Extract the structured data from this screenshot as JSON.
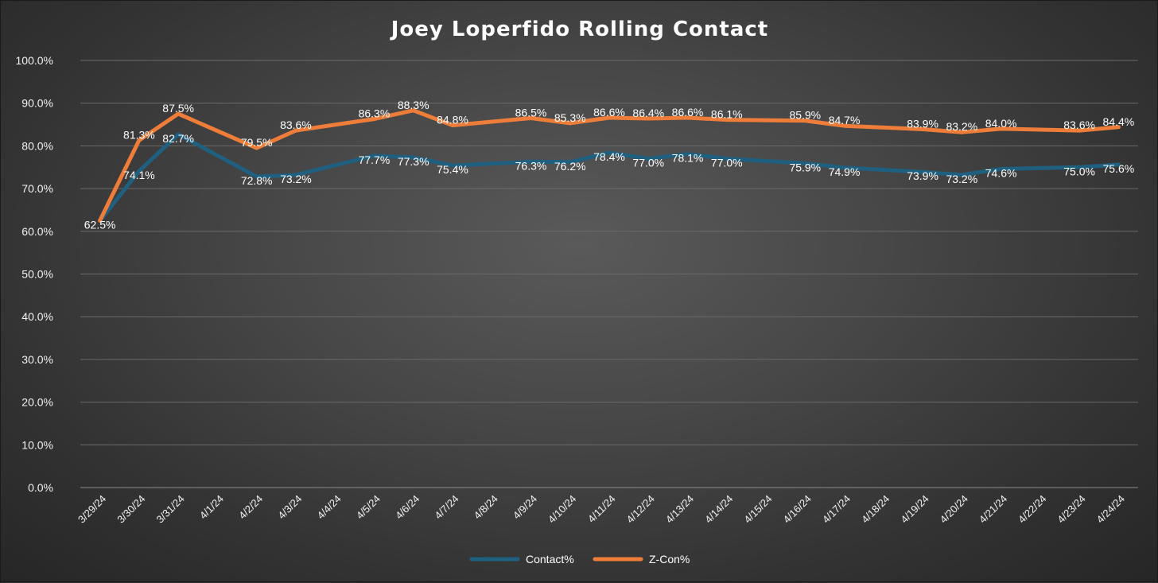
{
  "chart_data": {
    "type": "line",
    "title": "Joey Loperfido Rolling Contact",
    "xlabel": "",
    "ylabel": "",
    "ylim": [
      0,
      100
    ],
    "y_ticks": [
      "0.0%",
      "10.0%",
      "20.0%",
      "30.0%",
      "40.0%",
      "50.0%",
      "60.0%",
      "70.0%",
      "80.0%",
      "90.0%",
      "100.0%"
    ],
    "categories": [
      "3/29/24",
      "3/30/24",
      "3/31/24",
      "4/1/24",
      "4/2/24",
      "4/3/24",
      "4/4/24",
      "4/5/24",
      "4/6/24",
      "4/7/24",
      "4/8/24",
      "4/9/24",
      "4/10/24",
      "4/11/24",
      "4/12/24",
      "4/13/24",
      "4/14/24",
      "4/15/24",
      "4/16/24",
      "4/17/24",
      "4/18/24",
      "4/19/24",
      "4/20/24",
      "4/21/24",
      "4/22/24",
      "4/23/24",
      "4/24/24"
    ],
    "series": [
      {
        "name": "Contact%",
        "color": "#1f5f7f",
        "values": [
          62.5,
          74.1,
          82.7,
          null,
          72.8,
          73.2,
          null,
          77.7,
          77.3,
          75.4,
          null,
          76.3,
          76.2,
          78.4,
          77.0,
          78.1,
          77.0,
          null,
          75.9,
          74.9,
          null,
          73.9,
          73.2,
          74.6,
          null,
          75.0,
          75.6
        ],
        "labels": [
          "62.5%",
          "74.1%",
          "82.7%",
          "",
          "72.8%",
          "73.2%",
          "",
          "77.7%",
          "77.3%",
          "75.4%",
          "",
          "76.3%",
          "76.2%",
          "78.4%",
          "77.0%",
          "78.1%",
          "77.0%",
          "",
          "75.9%",
          "74.9%",
          "",
          "73.9%",
          "73.2%",
          "74.6%",
          "",
          "75.0%",
          "75.6%"
        ]
      },
      {
        "name": "Z-Con%",
        "color": "#ee7d3a",
        "values": [
          62.5,
          81.3,
          87.5,
          null,
          79.5,
          83.6,
          null,
          86.3,
          88.3,
          84.8,
          null,
          86.5,
          85.3,
          86.6,
          86.4,
          86.6,
          86.1,
          null,
          85.9,
          84.7,
          null,
          83.9,
          83.2,
          84.0,
          null,
          83.6,
          84.4
        ],
        "labels": [
          "62.5%",
          "81.3%",
          "87.5%",
          "",
          "79.5%",
          "83.6%",
          "",
          "86.3%",
          "88.3%",
          "84.8%",
          "",
          "86.5%",
          "85.3%",
          "86.6%",
          "86.4%",
          "86.6%",
          "86.1%",
          "",
          "85.9%",
          "84.7%",
          "",
          "83.9%",
          "83.2%",
          "84.0%",
          "",
          "83.6%",
          "84.4%"
        ]
      }
    ],
    "grid": true,
    "legend_position": "bottom",
    "background_color": "#474747"
  }
}
